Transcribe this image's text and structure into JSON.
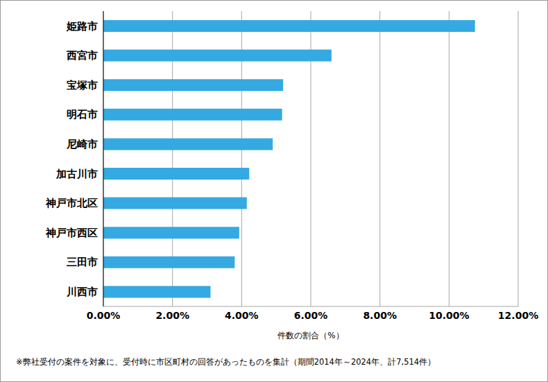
{
  "chart_data": {
    "type": "bar",
    "orientation": "horizontal",
    "categories": [
      "姫路市",
      "西宮市",
      "宝塚市",
      "明石市",
      "尼崎市",
      "加古川市",
      "神戸市北区",
      "神戸市西区",
      "三田市",
      "川西市"
    ],
    "values": [
      10.75,
      6.6,
      5.2,
      5.17,
      4.9,
      4.22,
      4.15,
      3.93,
      3.8,
      3.1
    ],
    "color": "#35a9e1",
    "xlabel": "件数の割合（%）",
    "xlim": [
      0,
      12
    ],
    "xticks": [
      {
        "value": 0,
        "label": "0.00%"
      },
      {
        "value": 2,
        "label": "2.00%"
      },
      {
        "value": 4,
        "label": "4.00%"
      },
      {
        "value": 6,
        "label": "6.00%"
      },
      {
        "value": 8,
        "label": "8.00%"
      },
      {
        "value": 10,
        "label": "10.00%"
      },
      {
        "value": 12,
        "label": "12.00%"
      }
    ],
    "grid": true,
    "annotations": [
      "※弊社受付の案件を対象に、受付時に市区町村の回答があったものを集計（期間2014年～2024年、計7,514件）"
    ]
  }
}
